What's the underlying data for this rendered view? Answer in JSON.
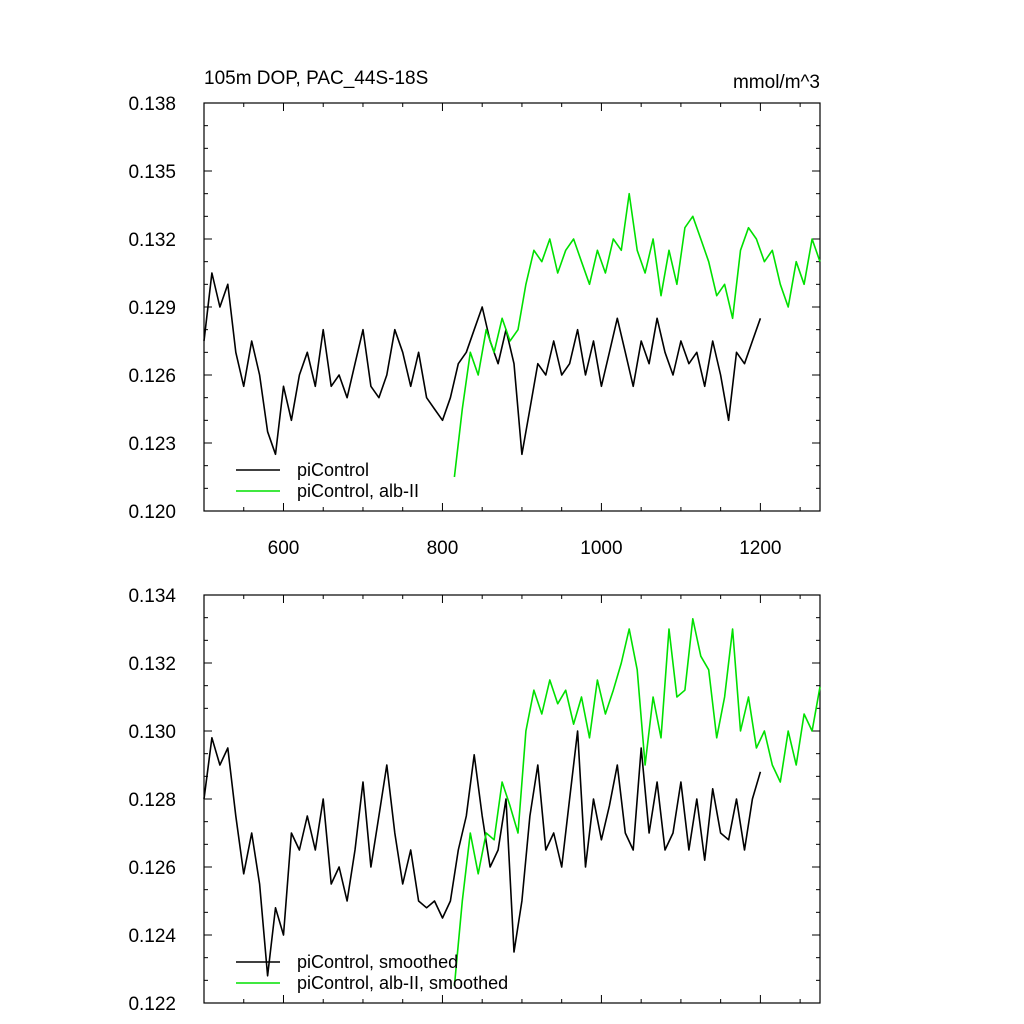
{
  "chart_data": [
    {
      "type": "line",
      "title": "105m DOP, PAC_44S-18S",
      "units": "mmol/m^3",
      "xlim": [
        500,
        1275
      ],
      "ylim": [
        0.12,
        0.138
      ],
      "xticks": [
        {
          "value": 600,
          "label": "600"
        },
        {
          "value": 800,
          "label": "800"
        },
        {
          "value": 1000,
          "label": "1000"
        },
        {
          "value": 1200,
          "label": "1200"
        }
      ],
      "yticks": [
        {
          "value": 0.12,
          "label": "0.120"
        },
        {
          "value": 0.123,
          "label": "0.123"
        },
        {
          "value": 0.126,
          "label": "0.126"
        },
        {
          "value": 0.129,
          "label": "0.129"
        },
        {
          "value": 0.132,
          "label": "0.132"
        },
        {
          "value": 0.135,
          "label": "0.135"
        },
        {
          "value": 0.138,
          "label": "0.138"
        }
      ],
      "legend_position": "bottom-left",
      "grid": false,
      "series": [
        {
          "name": "piControl",
          "color": "#000000",
          "x": [
            500,
            510,
            520,
            530,
            540,
            550,
            560,
            570,
            580,
            590,
            600,
            610,
            620,
            630,
            640,
            650,
            660,
            670,
            680,
            690,
            700,
            710,
            720,
            730,
            740,
            750,
            760,
            770,
            780,
            790,
            800,
            810,
            820,
            830,
            840,
            850,
            860,
            870,
            880,
            890,
            900,
            910,
            920,
            930,
            940,
            950,
            960,
            970,
            980,
            990,
            1000,
            1010,
            1020,
            1030,
            1040,
            1050,
            1060,
            1070,
            1080,
            1090,
            1100,
            1110,
            1120,
            1130,
            1140,
            1150,
            1160,
            1170,
            1180,
            1190,
            1200
          ],
          "values": [
            0.1275,
            0.1305,
            0.129,
            0.13,
            0.127,
            0.1255,
            0.1275,
            0.126,
            0.1235,
            0.1225,
            0.1255,
            0.124,
            0.126,
            0.127,
            0.1255,
            0.128,
            0.1255,
            0.126,
            0.125,
            0.1265,
            0.128,
            0.1255,
            0.125,
            0.126,
            0.128,
            0.127,
            0.1255,
            0.127,
            0.125,
            0.1245,
            0.124,
            0.125,
            0.1265,
            0.127,
            0.128,
            0.129,
            0.1275,
            0.1265,
            0.128,
            0.1265,
            0.1225,
            0.1245,
            0.1265,
            0.126,
            0.1275,
            0.126,
            0.1265,
            0.128,
            0.126,
            0.1275,
            0.1255,
            0.127,
            0.1285,
            0.127,
            0.1255,
            0.1275,
            0.1265,
            0.1285,
            0.127,
            0.126,
            0.1275,
            0.1265,
            0.127,
            0.1255,
            0.1275,
            0.126,
            0.124,
            0.127,
            0.1265,
            0.1275,
            0.1285
          ]
        },
        {
          "name": "piControl, alb-II",
          "color": "#00e000",
          "x": [
            815,
            825,
            835,
            845,
            855,
            865,
            875,
            885,
            895,
            905,
            915,
            925,
            935,
            945,
            955,
            965,
            975,
            985,
            995,
            1005,
            1015,
            1025,
            1035,
            1045,
            1055,
            1065,
            1075,
            1085,
            1095,
            1105,
            1115,
            1125,
            1135,
            1145,
            1155,
            1165,
            1175,
            1185,
            1195,
            1205,
            1215,
            1225,
            1235,
            1245,
            1255,
            1265,
            1275
          ],
          "values": [
            0.1215,
            0.1245,
            0.127,
            0.126,
            0.128,
            0.127,
            0.1285,
            0.1275,
            0.128,
            0.13,
            0.1315,
            0.131,
            0.132,
            0.1305,
            0.1315,
            0.132,
            0.131,
            0.13,
            0.1315,
            0.1305,
            0.132,
            0.1315,
            0.134,
            0.1315,
            0.1305,
            0.132,
            0.1295,
            0.1315,
            0.13,
            0.1325,
            0.133,
            0.132,
            0.131,
            0.1295,
            0.13,
            0.1285,
            0.1315,
            0.1325,
            0.132,
            0.131,
            0.1315,
            0.13,
            0.129,
            0.131,
            0.13,
            0.132,
            0.131
          ]
        }
      ]
    },
    {
      "type": "line",
      "xlim": [
        500,
        1275
      ],
      "ylim": [
        0.122,
        0.134
      ],
      "xticks": [
        {
          "value": 600,
          "label": ""
        },
        {
          "value": 800,
          "label": ""
        },
        {
          "value": 1000,
          "label": ""
        },
        {
          "value": 1200,
          "label": ""
        }
      ],
      "yticks": [
        {
          "value": 0.122,
          "label": "0.122"
        },
        {
          "value": 0.124,
          "label": "0.124"
        },
        {
          "value": 0.126,
          "label": "0.126"
        },
        {
          "value": 0.128,
          "label": "0.128"
        },
        {
          "value": 0.13,
          "label": "0.130"
        },
        {
          "value": 0.132,
          "label": "0.132"
        },
        {
          "value": 0.134,
          "label": "0.134"
        }
      ],
      "legend_position": "bottom-left",
      "grid": false,
      "series": [
        {
          "name": "piControl, smoothed",
          "color": "#000000",
          "x": [
            500,
            510,
            520,
            530,
            540,
            550,
            560,
            570,
            580,
            590,
            600,
            610,
            620,
            630,
            640,
            650,
            660,
            670,
            680,
            690,
            700,
            710,
            720,
            730,
            740,
            750,
            760,
            770,
            780,
            790,
            800,
            810,
            820,
            830,
            840,
            850,
            860,
            870,
            880,
            890,
            900,
            910,
            920,
            930,
            940,
            950,
            960,
            970,
            980,
            990,
            1000,
            1010,
            1020,
            1030,
            1040,
            1050,
            1060,
            1070,
            1080,
            1090,
            1100,
            1110,
            1120,
            1130,
            1140,
            1150,
            1160,
            1170,
            1180,
            1190,
            1200
          ],
          "values": [
            0.128,
            0.1298,
            0.129,
            0.1295,
            0.1275,
            0.1258,
            0.127,
            0.1255,
            0.1228,
            0.1248,
            0.124,
            0.127,
            0.1265,
            0.1275,
            0.1265,
            0.128,
            0.1255,
            0.126,
            0.125,
            0.1265,
            0.1285,
            0.126,
            0.1275,
            0.129,
            0.127,
            0.1255,
            0.1265,
            0.125,
            0.1248,
            0.125,
            0.1245,
            0.125,
            0.1265,
            0.1275,
            0.1293,
            0.1275,
            0.126,
            0.1265,
            0.128,
            0.1235,
            0.125,
            0.1275,
            0.129,
            0.1265,
            0.127,
            0.126,
            0.128,
            0.13,
            0.126,
            0.128,
            0.1268,
            0.1278,
            0.129,
            0.127,
            0.1265,
            0.1295,
            0.127,
            0.1285,
            0.1265,
            0.127,
            0.1285,
            0.1265,
            0.128,
            0.1262,
            0.1283,
            0.127,
            0.1268,
            0.128,
            0.1265,
            0.128,
            0.1288
          ]
        },
        {
          "name": "piControl, alb-II, smoothed",
          "color": "#00e000",
          "x": [
            815,
            825,
            835,
            845,
            855,
            865,
            875,
            885,
            895,
            905,
            915,
            925,
            935,
            945,
            955,
            965,
            975,
            985,
            995,
            1005,
            1015,
            1025,
            1035,
            1045,
            1055,
            1065,
            1075,
            1085,
            1095,
            1105,
            1115,
            1125,
            1135,
            1145,
            1155,
            1165,
            1175,
            1185,
            1195,
            1205,
            1215,
            1225,
            1235,
            1245,
            1255,
            1265,
            1275
          ],
          "values": [
            0.1225,
            0.125,
            0.127,
            0.1258,
            0.127,
            0.1268,
            0.1285,
            0.1278,
            0.127,
            0.13,
            0.1312,
            0.1305,
            0.1315,
            0.1308,
            0.1312,
            0.1302,
            0.131,
            0.1298,
            0.1315,
            0.1305,
            0.1312,
            0.132,
            0.133,
            0.1318,
            0.129,
            0.131,
            0.1298,
            0.133,
            0.131,
            0.1312,
            0.1333,
            0.1322,
            0.1318,
            0.1298,
            0.131,
            0.133,
            0.13,
            0.131,
            0.1295,
            0.13,
            0.129,
            0.1285,
            0.13,
            0.129,
            0.1305,
            0.13,
            0.1313
          ]
        }
      ]
    }
  ]
}
